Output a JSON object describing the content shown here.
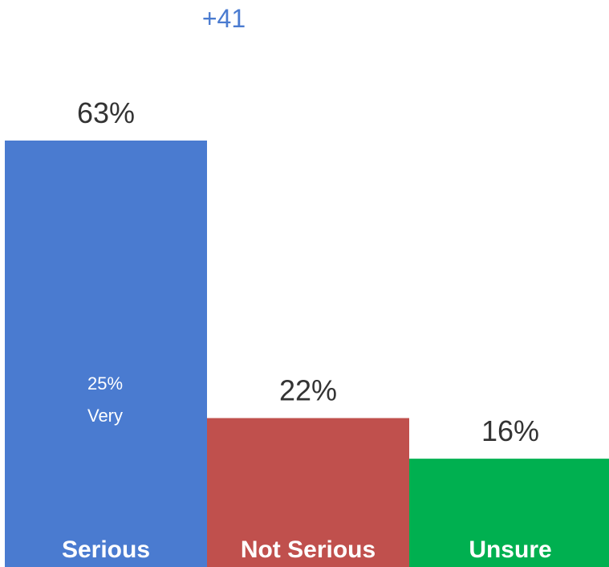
{
  "chart_data": {
    "type": "bar",
    "categories": [
      "Serious",
      "Not Serious",
      "Unsure"
    ],
    "values": [
      63,
      22,
      16
    ],
    "value_labels": [
      "63%",
      "22%",
      "16%"
    ],
    "colors": [
      "#4a7bd0",
      "#c0504d",
      "#00b050"
    ],
    "net_label": "+41",
    "net_color": "#4a7bd0",
    "sub_label": {
      "value": "25%",
      "text": "Very",
      "category": "Serious"
    },
    "ylim": [
      0,
      100
    ],
    "grid": false,
    "legend": "none"
  }
}
